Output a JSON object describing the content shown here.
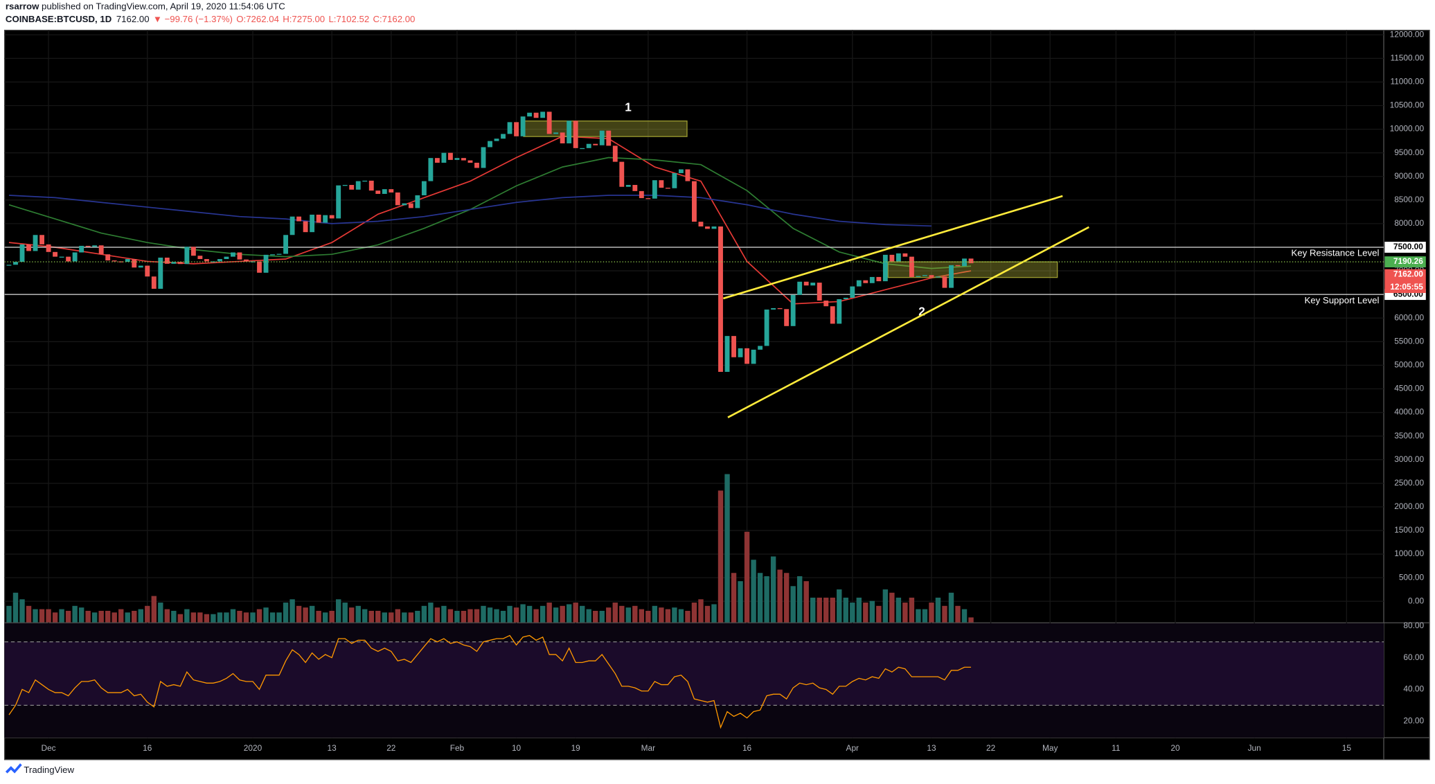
{
  "header": {
    "author": "rsarrow",
    "published": " published on TradingView.com, April 19, 2020 11:54:06 UTC",
    "symbol": "COINBASE:BTCUSD, 1D",
    "last": "7162.00",
    "change": "▼ −99.76 (−1.37%)",
    "ohlc": [
      "O:7262.04",
      "H:7275.00",
      "L:7102.52",
      "C:7162.00"
    ]
  },
  "footer": {
    "brand": "TradingView"
  },
  "chart_data": {
    "type": "candlestick",
    "up_color": "#26a69a",
    "down_color": "#ef5350",
    "closes": [
      7129,
      7190,
      7560,
      7420,
      7760,
      7560,
      7400,
      7300,
      7300,
      7200,
      7390,
      7530,
      7510,
      7540,
      7350,
      7220,
      7200,
      7190,
      7250,
      7070,
      7110,
      6880,
      6620,
      7280,
      7150,
      7190,
      7145,
      7510,
      7320,
      7250,
      7200,
      7200,
      7250,
      7300,
      7390,
      7240,
      7200,
      7200,
      6960,
      7340,
      7350,
      7360,
      7760,
      8150,
      8050,
      7820,
      8190,
      8020,
      8180,
      8110,
      8810,
      8820,
      8720,
      8900,
      8910,
      8700,
      8630,
      8730,
      8660,
      8390,
      8430,
      8330,
      8600,
      8900,
      9390,
      9290,
      9500,
      9350,
      9390,
      9340,
      9290,
      9180,
      9620,
      9750,
      9800,
      9900,
      10150,
      9850,
      10270,
      10350,
      10240,
      10370,
      9900,
      9930,
      9700,
      10180,
      9600,
      9600,
      9690,
      9660,
      9970,
      9650,
      9310,
      8780,
      8820,
      8690,
      8540,
      8530,
      8920,
      8760,
      8750,
      9070,
      9150,
      8900,
      8040,
      7940,
      7890,
      7940,
      4860,
      5620,
      5170,
      5360,
      5030,
      5330,
      5410,
      6180,
      6210,
      6190,
      5830,
      6490,
      6770,
      6690,
      6750,
      6370,
      6250,
      5880,
      6400,
      6430,
      6670,
      6800,
      6740,
      6870,
      6780,
      7340,
      7200,
      7370,
      7300,
      6870,
      6890,
      6910,
      6860,
      6880,
      6640,
      7120,
      7100,
      7260,
      7162
    ],
    "volume": [
      10,
      18,
      14,
      10,
      8,
      8,
      8,
      6,
      8,
      7,
      10,
      9,
      7,
      6,
      7,
      7,
      6,
      8,
      6,
      7,
      8,
      10,
      16,
      12,
      8,
      7,
      5,
      8,
      6,
      6,
      5,
      5,
      6,
      6,
      8,
      7,
      6,
      6,
      8,
      9,
      6,
      6,
      12,
      14,
      10,
      9,
      10,
      7,
      6,
      7,
      14,
      12,
      9,
      10,
      8,
      7,
      7,
      6,
      6,
      8,
      6,
      6,
      7,
      10,
      12,
      9,
      10,
      8,
      7,
      7,
      8,
      8,
      10,
      9,
      8,
      7,
      10,
      9,
      11,
      10,
      8,
      10,
      12,
      9,
      10,
      11,
      12,
      10,
      8,
      7,
      7,
      9,
      12,
      10,
      9,
      10,
      8,
      7,
      10,
      9,
      8,
      9,
      8,
      7,
      12,
      14,
      10,
      11,
      80,
      90,
      30,
      25,
      55,
      38,
      30,
      28,
      40,
      32,
      30,
      22,
      28,
      25,
      15,
      15,
      15,
      15,
      20,
      15,
      12,
      15,
      12,
      13,
      10,
      20,
      18,
      15,
      12,
      15,
      8,
      8,
      12,
      15,
      10,
      18,
      10,
      8,
      3
    ],
    "vlim": [
      0,
      100
    ],
    "rsi": [
      24,
      30,
      40,
      38,
      46,
      43,
      40,
      38,
      38,
      36,
      41,
      45,
      45,
      46,
      41,
      38,
      38,
      38,
      40,
      36,
      37,
      32,
      29,
      45,
      42,
      43,
      42,
      51,
      46,
      45,
      44,
      44,
      45,
      47,
      50,
      46,
      45,
      45,
      40,
      49,
      49,
      49,
      58,
      65,
      62,
      57,
      63,
      59,
      62,
      60,
      72,
      72,
      69,
      71,
      71,
      66,
      64,
      66,
      64,
      58,
      59,
      57,
      62,
      67,
      72,
      70,
      72,
      69,
      70,
      68,
      67,
      64,
      70,
      71,
      72,
      72,
      74,
      68,
      73,
      74,
      71,
      73,
      62,
      62,
      58,
      66,
      57,
      57,
      58,
      58,
      62,
      56,
      50,
      42,
      42,
      41,
      39,
      39,
      45,
      43,
      43,
      48,
      49,
      45,
      34,
      33,
      32,
      33,
      16,
      26,
      23,
      25,
      22,
      26,
      27,
      36,
      37,
      37,
      34,
      41,
      44,
      43,
      44,
      41,
      40,
      37,
      42,
      42,
      45,
      47,
      46,
      48,
      47,
      53,
      51,
      54,
      53,
      48,
      48,
      48,
      48,
      48,
      46,
      52,
      52,
      54,
      54
    ],
    "rsi_color": "#ff9800",
    "rsi_ylim": [
      9.6,
      81.7
    ],
    "rsi_bands": [
      30,
      70
    ],
    "rsi_ticks": [
      {
        "value": 80,
        "label": "80.00"
      },
      {
        "value": 60,
        "label": "60.00"
      },
      {
        "value": 40,
        "label": "40.00"
      },
      {
        "value": 20,
        "label": "20.00"
      }
    ],
    "xlim": [
      -0.67,
      208.64
    ],
    "xticks": [
      {
        "value": 6,
        "label": "Dec"
      },
      {
        "value": 21,
        "label": "16"
      },
      {
        "value": 37,
        "label": "2020"
      },
      {
        "value": 49,
        "label": "13"
      },
      {
        "value": 58,
        "label": "22"
      },
      {
        "value": 68,
        "label": "Feb"
      },
      {
        "value": 77,
        "label": "10"
      },
      {
        "value": 86,
        "label": "19"
      },
      {
        "value": 97,
        "label": "Mar"
      },
      {
        "value": 112,
        "label": "16"
      },
      {
        "value": 128,
        "label": "Apr"
      },
      {
        "value": 140,
        "label": "13"
      },
      {
        "value": 149,
        "label": "22"
      },
      {
        "value": 158,
        "label": "May"
      },
      {
        "value": 168,
        "label": "11"
      },
      {
        "value": 177,
        "label": "20"
      },
      {
        "value": 189,
        "label": "Jun"
      },
      {
        "value": 203,
        "label": "15"
      }
    ],
    "ylim": [
      -446,
      12097
    ],
    "yticks": [
      {
        "value": 0,
        "label": "0.00"
      },
      {
        "value": 500,
        "label": "500.00"
      },
      {
        "value": 1000,
        "label": "1000.00"
      },
      {
        "value": 1500,
        "label": "1500.00"
      },
      {
        "value": 2000,
        "label": "2000.00"
      },
      {
        "value": 2500,
        "label": "2500.00"
      },
      {
        "value": 3000,
        "label": "3000.00"
      },
      {
        "value": 3500,
        "label": "3500.00"
      },
      {
        "value": 4000,
        "label": "4000.00"
      },
      {
        "value": 4500,
        "label": "4500.00"
      },
      {
        "value": 5000,
        "label": "5000.00"
      },
      {
        "value": 5500,
        "label": "5500.00"
      },
      {
        "value": 6000,
        "label": "6000.00"
      },
      {
        "value": 6500,
        "label": "6500.00"
      },
      {
        "value": 7000,
        "label": "7000.00"
      },
      {
        "value": 7500,
        "label": "7500.00"
      },
      {
        "value": 8000,
        "label": "8000.00"
      },
      {
        "value": 8500,
        "label": "8500.00"
      },
      {
        "value": 9000,
        "label": "9000.00"
      },
      {
        "value": 9500,
        "label": "9500.00"
      },
      {
        "value": 10000,
        "label": "10000.00"
      },
      {
        "value": 10500,
        "label": "10500.00"
      },
      {
        "value": 11000,
        "label": "11000.00"
      },
      {
        "value": 11500,
        "label": "11500.00"
      },
      {
        "value": 12000,
        "label": "12000.00"
      }
    ],
    "grid": true,
    "ma": [
      {
        "color": "#e53935",
        "x": [
          0,
          7,
          14,
          21,
          28,
          35,
          42,
          49,
          56,
          63,
          70,
          77,
          84,
          91,
          98,
          105,
          112,
          119,
          126,
          133,
          140,
          146
        ],
        "values": [
          7600,
          7500,
          7350,
          7200,
          7150,
          7200,
          7250,
          7600,
          8200,
          8550,
          8900,
          9400,
          9850,
          9800,
          9200,
          8900,
          7200,
          6300,
          6350,
          6600,
          6850,
          7000
        ]
      },
      {
        "color": "#2e7d32",
        "x": [
          0,
          7,
          14,
          21,
          28,
          35,
          42,
          49,
          56,
          63,
          70,
          77,
          84,
          91,
          98,
          105,
          112,
          119,
          126,
          133,
          140,
          146
        ],
        "values": [
          8400,
          8100,
          7800,
          7600,
          7450,
          7350,
          7300,
          7350,
          7550,
          7900,
          8300,
          8800,
          9200,
          9400,
          9350,
          9250,
          8700,
          7900,
          7400,
          7150,
          7050,
          7100
        ]
      },
      {
        "color": "#283593",
        "x": [
          0,
          7,
          14,
          21,
          28,
          35,
          42,
          49,
          56,
          63,
          70,
          77,
          84,
          91,
          98,
          105,
          112,
          119,
          126,
          133,
          140
        ],
        "values": [
          8600,
          8550,
          8450,
          8350,
          8250,
          8150,
          8100,
          8000,
          8050,
          8150,
          8300,
          8450,
          8550,
          8600,
          8600,
          8550,
          8400,
          8200,
          8050,
          7980,
          7950
        ]
      }
    ],
    "levels": [
      {
        "value": 7500,
        "label": "7500.00",
        "name": "Key Resistance Level"
      },
      {
        "value": 6500,
        "label": "6500.00",
        "name": "Key Support Level"
      }
    ],
    "line_price": {
      "value": 7190.26,
      "label": "7190.26"
    },
    "last_price": {
      "value": 7162,
      "label": "7162.00"
    },
    "countdown": "12:05:55",
    "trendlines": [
      {
        "color": "#ffeb3b",
        "x": [
          108.4,
          159.9
        ],
        "y": [
          6415,
          8585
        ]
      },
      {
        "color": "#ffeb3b",
        "x": [
          109.1,
          163.9
        ],
        "y": [
          3895,
          7926
        ]
      }
    ],
    "zones": [
      {
        "label": "1",
        "x": [
          78.1,
          102.9
        ],
        "y": [
          10174,
          9845
        ]
      },
      {
        "label": "2",
        "x": [
          133.4,
          159.1
        ],
        "y": [
          7190,
          6860
        ]
      }
    ]
  }
}
